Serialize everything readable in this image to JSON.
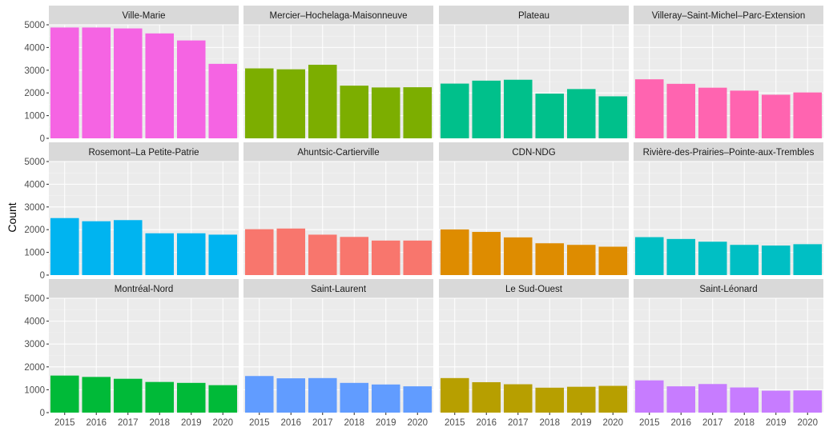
{
  "chart_data": {
    "type": "bar",
    "ylabel": "Count",
    "xlabel": "",
    "title": "",
    "ylim": [
      0,
      5000
    ],
    "yticks": [
      0,
      1000,
      2000,
      3000,
      4000,
      5000
    ],
    "categories": [
      "2015",
      "2016",
      "2017",
      "2018",
      "2019",
      "2020"
    ],
    "grid": true,
    "legend": "none",
    "facets": [
      {
        "name": "Ville-Marie",
        "color": "#F564E3",
        "values": [
          4880,
          4880,
          4840,
          4620,
          4310,
          3280
        ]
      },
      {
        "name": "Mercier–Hochelaga-Maisonneuve",
        "color": "#7CAE00",
        "values": [
          3080,
          3040,
          3240,
          2320,
          2240,
          2250
        ]
      },
      {
        "name": "Plateau",
        "color": "#00C08B",
        "values": [
          2410,
          2540,
          2580,
          1970,
          2170,
          1850
        ]
      },
      {
        "name": "Villeray–Saint-Michel–Parc-Extension",
        "color": "#FF64B0",
        "values": [
          2600,
          2400,
          2230,
          2100,
          1920,
          2020
        ]
      },
      {
        "name": "Rosemont–La Petite-Patrie",
        "color": "#00B4F0",
        "values": [
          2510,
          2370,
          2420,
          1840,
          1840,
          1780
        ]
      },
      {
        "name": "Ahuntsic-Cartierville",
        "color": "#F8766D",
        "values": [
          2020,
          2050,
          1780,
          1680,
          1520,
          1520
        ]
      },
      {
        "name": "CDN-NDG",
        "color": "#DE8C00",
        "values": [
          2010,
          1900,
          1660,
          1400,
          1330,
          1250
        ]
      },
      {
        "name": "Rivière-des-Prairies–Pointe-aux-Trembles",
        "color": "#00BFC4",
        "values": [
          1670,
          1590,
          1470,
          1330,
          1300,
          1360
        ]
      },
      {
        "name": "Montréal-Nord",
        "color": "#00BA38",
        "values": [
          1620,
          1560,
          1480,
          1340,
          1300,
          1200
        ]
      },
      {
        "name": "Saint-Laurent",
        "color": "#619CFF",
        "values": [
          1600,
          1500,
          1510,
          1300,
          1230,
          1150
        ]
      },
      {
        "name": "Le Sud-Ouest",
        "color": "#B79F00",
        "values": [
          1510,
          1330,
          1240,
          1090,
          1130,
          1170
        ]
      },
      {
        "name": "Saint-Léonard",
        "color": "#C77CFF",
        "values": [
          1410,
          1150,
          1250,
          1100,
          960,
          970
        ]
      }
    ]
  }
}
